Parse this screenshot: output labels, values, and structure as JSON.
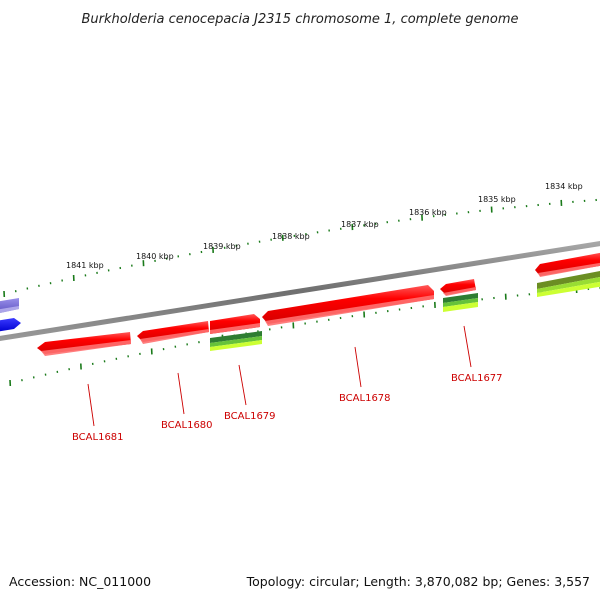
{
  "title": "Burkholderia cenocepacia J2315 chromosome 1, complete genome",
  "footer": {
    "accession": "Accession: NC_011000",
    "summary": "Topology: circular; Length: 3,870,082 bp; Genes: 3,557"
  },
  "colors": {
    "backbone": "#808080",
    "gene_red": "#ff0000",
    "gene_red_dark": "#cc0000",
    "gene_blue": "#0000ff",
    "gene_purple": "#7b6fd6",
    "feature_green_dark": "#2e7d32",
    "feature_green_light": "#ccff33",
    "tick_green": "#1a7a1a",
    "label_red": "#cc0000"
  },
  "outer_scale": {
    "unit": "kbp",
    "labels": [
      "1841 kbp",
      "1840 kbp",
      "1839 kbp",
      "1838 kbp",
      "1837 kbp",
      "1836 kbp",
      "1835 kbp",
      "1834 kbp"
    ]
  },
  "gene_labels": [
    "BCAL1681",
    "BCAL1680",
    "BCAL1679",
    "BCAL1678",
    "BCAL1677"
  ]
}
